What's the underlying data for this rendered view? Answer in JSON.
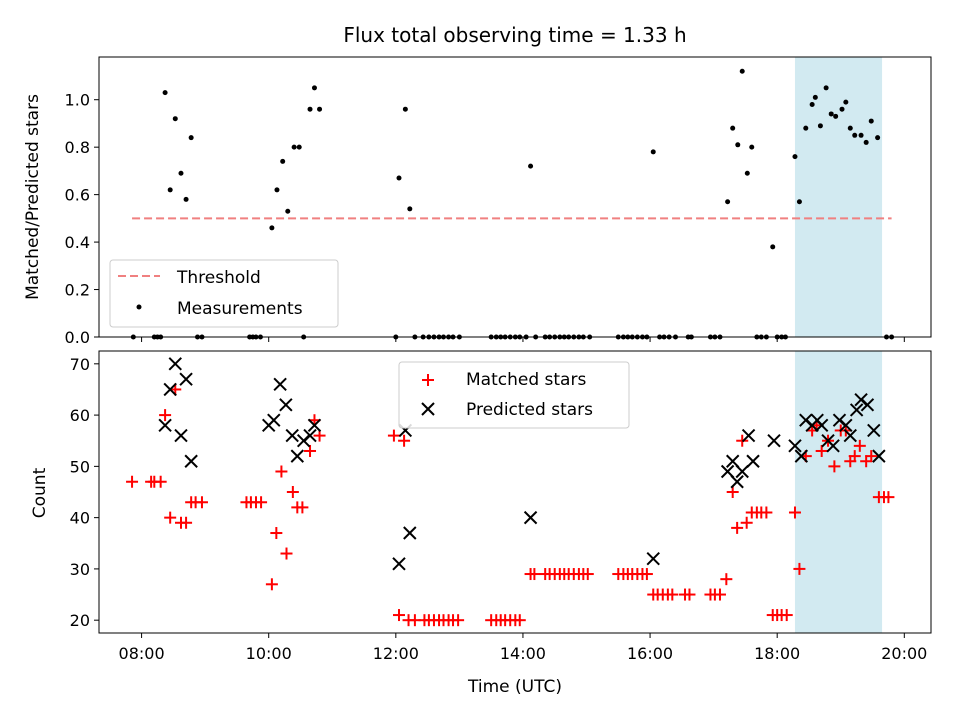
{
  "title": "Flux total observing time = 1.33 h",
  "chart_data": [
    {
      "type": "scatter",
      "ylabel": "Matched/Predicted stars",
      "ylim": [
        0,
        1.18
      ],
      "yticks": [
        0.0,
        0.2,
        0.4,
        0.6,
        0.8,
        1.0
      ],
      "x_range_hours": [
        7.33,
        20.42
      ],
      "threshold": {
        "name": "Threshold",
        "value": 0.5,
        "x": [
          7.85,
          19.8
        ],
        "color": "#f08080"
      },
      "shaded_region": {
        "x": [
          18.28,
          19.65
        ],
        "color": "#add8e6"
      },
      "legend": {
        "position": "lower-left",
        "entries": [
          "Threshold",
          "Measurements"
        ]
      },
      "series": [
        {
          "name": "Measurements",
          "color": "#000000",
          "points": [
            [
              7.87,
              0
            ],
            [
              8.2,
              0
            ],
            [
              8.25,
              0
            ],
            [
              8.3,
              0
            ],
            [
              8.37,
              1.03
            ],
            [
              8.45,
              0.62
            ],
            [
              8.53,
              0.92
            ],
            [
              8.62,
              0.69
            ],
            [
              8.7,
              0.58
            ],
            [
              8.78,
              0.84
            ],
            [
              8.88,
              0
            ],
            [
              8.95,
              0
            ],
            [
              9.7,
              0
            ],
            [
              9.75,
              0
            ],
            [
              9.8,
              0
            ],
            [
              9.87,
              0
            ],
            [
              10.05,
              0.46
            ],
            [
              10.13,
              0.62
            ],
            [
              10.22,
              0.74
            ],
            [
              10.3,
              0.53
            ],
            [
              10.4,
              0.8
            ],
            [
              10.48,
              0.8
            ],
            [
              10.55,
              0
            ],
            [
              10.65,
              0.96
            ],
            [
              10.72,
              1.05
            ],
            [
              10.8,
              0.96
            ],
            [
              12.0,
              0
            ],
            [
              12.05,
              0.67
            ],
            [
              12.15,
              0.96
            ],
            [
              12.22,
              0.54
            ],
            [
              12.3,
              0
            ],
            [
              12.43,
              0
            ],
            [
              12.52,
              0
            ],
            [
              12.6,
              0
            ],
            [
              12.68,
              0
            ],
            [
              12.75,
              0
            ],
            [
              12.83,
              0
            ],
            [
              12.9,
              0
            ],
            [
              13.0,
              0
            ],
            [
              13.5,
              0
            ],
            [
              13.58,
              0
            ],
            [
              13.65,
              0
            ],
            [
              13.72,
              0
            ],
            [
              13.8,
              0
            ],
            [
              13.88,
              0
            ],
            [
              13.95,
              0
            ],
            [
              14.05,
              0
            ],
            [
              14.12,
              0.72
            ],
            [
              14.2,
              0
            ],
            [
              14.35,
              0
            ],
            [
              14.42,
              0
            ],
            [
              14.5,
              0
            ],
            [
              14.58,
              0
            ],
            [
              14.65,
              0
            ],
            [
              14.72,
              0
            ],
            [
              14.8,
              0
            ],
            [
              14.88,
              0
            ],
            [
              14.95,
              0
            ],
            [
              15.05,
              0
            ],
            [
              15.5,
              0
            ],
            [
              15.58,
              0
            ],
            [
              15.65,
              0
            ],
            [
              15.72,
              0
            ],
            [
              15.8,
              0
            ],
            [
              15.88,
              0
            ],
            [
              15.95,
              0
            ],
            [
              16.05,
              0.78
            ],
            [
              16.15,
              0
            ],
            [
              16.22,
              0
            ],
            [
              16.3,
              0
            ],
            [
              16.4,
              0
            ],
            [
              16.6,
              0
            ],
            [
              16.65,
              0
            ],
            [
              16.95,
              0
            ],
            [
              17.02,
              0
            ],
            [
              17.1,
              0
            ],
            [
              17.22,
              0.57
            ],
            [
              17.3,
              0.88
            ],
            [
              17.38,
              0.81
            ],
            [
              17.45,
              1.12
            ],
            [
              17.53,
              0.69
            ],
            [
              17.6,
              0.8
            ],
            [
              17.68,
              0
            ],
            [
              17.75,
              0
            ],
            [
              17.83,
              0
            ],
            [
              17.93,
              0.38
            ],
            [
              18.0,
              0
            ],
            [
              18.07,
              0
            ],
            [
              18.13,
              0
            ],
            [
              18.28,
              0.76
            ],
            [
              18.35,
              0.57
            ],
            [
              18.45,
              0.88
            ],
            [
              18.55,
              0.98
            ],
            [
              18.6,
              1.01
            ],
            [
              18.68,
              0.89
            ],
            [
              18.77,
              1.05
            ],
            [
              18.85,
              0.94
            ],
            [
              18.92,
              0.93
            ],
            [
              19.02,
              0.96
            ],
            [
              19.08,
              0.99
            ],
            [
              19.15,
              0.88
            ],
            [
              19.22,
              0.85
            ],
            [
              19.32,
              0.85
            ],
            [
              19.4,
              0.82
            ],
            [
              19.48,
              0.91
            ],
            [
              19.58,
              0.84
            ],
            [
              19.72,
              0
            ],
            [
              19.8,
              0
            ]
          ]
        }
      ]
    },
    {
      "type": "scatter",
      "xlabel": "Time (UTC)",
      "ylabel": "Count",
      "ylim": [
        17.5,
        72.5
      ],
      "yticks": [
        20,
        30,
        40,
        50,
        60,
        70
      ],
      "x_range_hours": [
        7.33,
        20.42
      ],
      "xtick_labels": [
        "08:00",
        "10:00",
        "12:00",
        "14:00",
        "16:00",
        "18:00",
        "20:00"
      ],
      "xtick_hours": [
        8,
        10,
        12,
        14,
        16,
        18,
        20
      ],
      "shaded_region": {
        "x": [
          18.28,
          19.65
        ],
        "color": "#add8e6"
      },
      "legend": {
        "position": "upper-center",
        "entries": [
          "Matched stars",
          "Predicted stars"
        ]
      },
      "series": [
        {
          "name": "Matched stars",
          "marker": "plus",
          "color": "#ff0000",
          "points": [
            [
              7.85,
              47
            ],
            [
              8.15,
              47
            ],
            [
              8.2,
              47
            ],
            [
              8.3,
              47
            ],
            [
              8.37,
              60
            ],
            [
              8.45,
              40
            ],
            [
              8.53,
              65
            ],
            [
              8.62,
              39
            ],
            [
              8.7,
              39
            ],
            [
              8.78,
              43
            ],
            [
              8.85,
              43
            ],
            [
              8.95,
              43
            ],
            [
              9.65,
              43
            ],
            [
              9.72,
              43
            ],
            [
              9.8,
              43
            ],
            [
              9.88,
              43
            ],
            [
              10.05,
              27
            ],
            [
              10.12,
              37
            ],
            [
              10.2,
              49
            ],
            [
              10.28,
              33
            ],
            [
              10.38,
              45
            ],
            [
              10.45,
              42
            ],
            [
              10.53,
              42
            ],
            [
              10.65,
              53
            ],
            [
              10.72,
              59
            ],
            [
              10.8,
              56
            ],
            [
              11.97,
              56
            ],
            [
              12.05,
              21
            ],
            [
              12.13,
              55
            ],
            [
              12.2,
              20
            ],
            [
              12.3,
              20
            ],
            [
              12.45,
              20
            ],
            [
              12.52,
              20
            ],
            [
              12.6,
              20
            ],
            [
              12.68,
              20
            ],
            [
              12.75,
              20
            ],
            [
              12.83,
              20
            ],
            [
              12.9,
              20
            ],
            [
              12.98,
              20
            ],
            [
              13.5,
              20
            ],
            [
              13.58,
              20
            ],
            [
              13.65,
              20
            ],
            [
              13.72,
              20
            ],
            [
              13.8,
              20
            ],
            [
              13.88,
              20
            ],
            [
              13.95,
              20
            ],
            [
              14.12,
              29
            ],
            [
              14.18,
              29
            ],
            [
              14.35,
              29
            ],
            [
              14.42,
              29
            ],
            [
              14.5,
              29
            ],
            [
              14.58,
              29
            ],
            [
              14.65,
              29
            ],
            [
              14.72,
              29
            ],
            [
              14.8,
              29
            ],
            [
              14.88,
              29
            ],
            [
              14.95,
              29
            ],
            [
              15.02,
              29
            ],
            [
              15.5,
              29
            ],
            [
              15.58,
              29
            ],
            [
              15.65,
              29
            ],
            [
              15.72,
              29
            ],
            [
              15.8,
              29
            ],
            [
              15.88,
              29
            ],
            [
              15.95,
              29
            ],
            [
              16.05,
              25
            ],
            [
              16.12,
              25
            ],
            [
              16.2,
              25
            ],
            [
              16.28,
              25
            ],
            [
              16.35,
              25
            ],
            [
              16.55,
              25
            ],
            [
              16.62,
              25
            ],
            [
              16.95,
              25
            ],
            [
              17.02,
              25
            ],
            [
              17.1,
              25
            ],
            [
              17.2,
              28
            ],
            [
              17.3,
              45
            ],
            [
              17.37,
              38
            ],
            [
              17.45,
              55
            ],
            [
              17.52,
              39
            ],
            [
              17.6,
              41
            ],
            [
              17.68,
              41
            ],
            [
              17.75,
              41
            ],
            [
              17.83,
              41
            ],
            [
              17.93,
              21
            ],
            [
              18.0,
              21
            ],
            [
              18.07,
              21
            ],
            [
              18.15,
              21
            ],
            [
              18.28,
              41
            ],
            [
              18.35,
              30
            ],
            [
              18.45,
              52
            ],
            [
              18.55,
              57
            ],
            [
              18.62,
              58
            ],
            [
              18.7,
              53
            ],
            [
              18.8,
              55
            ],
            [
              18.9,
              50
            ],
            [
              19.0,
              57
            ],
            [
              19.08,
              57
            ],
            [
              19.15,
              51
            ],
            [
              19.22,
              52
            ],
            [
              19.3,
              54
            ],
            [
              19.4,
              51
            ],
            [
              19.48,
              52
            ],
            [
              19.6,
              44
            ],
            [
              19.68,
              44
            ],
            [
              19.75,
              44
            ]
          ]
        },
        {
          "name": "Predicted stars",
          "marker": "x",
          "color": "#000000",
          "points": [
            [
              8.37,
              58
            ],
            [
              8.45,
              65
            ],
            [
              8.53,
              70
            ],
            [
              8.62,
              56
            ],
            [
              8.7,
              67
            ],
            [
              8.78,
              51
            ],
            [
              10.0,
              58
            ],
            [
              10.08,
              59
            ],
            [
              10.18,
              66
            ],
            [
              10.27,
              62
            ],
            [
              10.37,
              56
            ],
            [
              10.45,
              52
            ],
            [
              10.55,
              55
            ],
            [
              10.65,
              56
            ],
            [
              10.72,
              58
            ],
            [
              12.05,
              31
            ],
            [
              12.15,
              57
            ],
            [
              12.22,
              37
            ],
            [
              14.12,
              40
            ],
            [
              16.05,
              32
            ],
            [
              17.22,
              49
            ],
            [
              17.3,
              51
            ],
            [
              17.37,
              47
            ],
            [
              17.45,
              49
            ],
            [
              17.55,
              56
            ],
            [
              17.62,
              51
            ],
            [
              17.95,
              55
            ],
            [
              18.28,
              54
            ],
            [
              18.38,
              52
            ],
            [
              18.45,
              59
            ],
            [
              18.55,
              58
            ],
            [
              18.63,
              59
            ],
            [
              18.7,
              58
            ],
            [
              18.8,
              55
            ],
            [
              18.88,
              54
            ],
            [
              18.98,
              59
            ],
            [
              19.08,
              58
            ],
            [
              19.15,
              56
            ],
            [
              19.25,
              61
            ],
            [
              19.32,
              63
            ],
            [
              19.42,
              62
            ],
            [
              19.52,
              57
            ],
            [
              19.6,
              52
            ]
          ]
        }
      ]
    }
  ]
}
